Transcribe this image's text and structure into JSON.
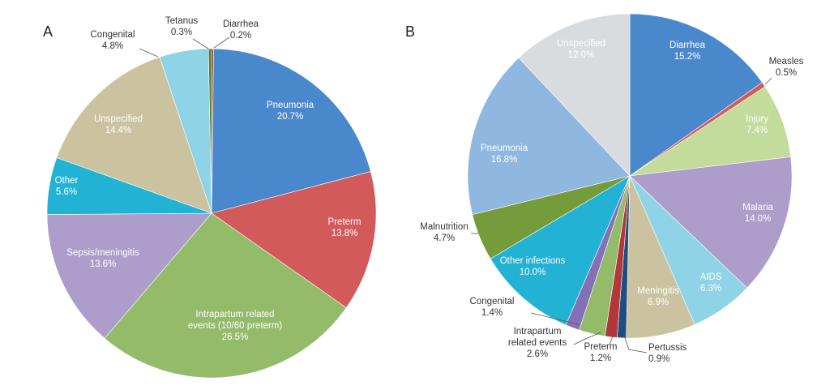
{
  "chart_data": [
    {
      "type": "pie",
      "panel": "A",
      "start": "12 o'clock, clockwise",
      "slices": [
        {
          "label": [
            "Diarrhea"
          ],
          "value": 0.2,
          "color": "#8b4a1f",
          "text": "0.2%"
        },
        {
          "label": [
            "Pneumonia"
          ],
          "value": 20.7,
          "color": "#4a88cc",
          "text": "20.7%"
        },
        {
          "label": [
            "Preterm"
          ],
          "value": 13.8,
          "color": "#d35a5a",
          "text": "13.8%"
        },
        {
          "label": [
            "Intrapartum related",
            "events (10/60 preterm)"
          ],
          "value": 26.5,
          "color": "#94bb6a",
          "text": "26.5%"
        },
        {
          "label": [
            "Sepsis/meningitis"
          ],
          "value": 13.6,
          "color": "#ac9dcb",
          "text": "13.6%"
        },
        {
          "label": [
            "Other"
          ],
          "value": 5.6,
          "color": "#22b2d4",
          "text": "5.6%"
        },
        {
          "label": [
            "Unspecified"
          ],
          "value": 14.4,
          "color": "#cbc39f",
          "text": "14.4%"
        },
        {
          "label": [
            "Congenital"
          ],
          "value": 4.8,
          "color": "#8fd3e6",
          "text": "4.8%"
        },
        {
          "label": [
            "Tetanus"
          ],
          "value": 0.3,
          "color": "#5a7e34",
          "text": "0.3%"
        }
      ]
    },
    {
      "type": "pie",
      "panel": "B",
      "start": "12 o'clock, clockwise",
      "slices": [
        {
          "label": [
            "Diarrhea"
          ],
          "value": 15.2,
          "color": "#4a88cc",
          "text": "15.2%"
        },
        {
          "label": [
            "Measles"
          ],
          "value": 0.5,
          "color": "#d35a5a",
          "text": "0.5%"
        },
        {
          "label": [
            "Injury"
          ],
          "value": 7.4,
          "color": "#c3dc9c",
          "text": "7.4%"
        },
        {
          "label": [
            "Malaria"
          ],
          "value": 14.0,
          "color": "#ac9dcb",
          "text": "14.0%"
        },
        {
          "label": [
            "AIDS"
          ],
          "value": 6.3,
          "color": "#8fd3e6",
          "text": "6.3%"
        },
        {
          "label": [
            "Meningitis"
          ],
          "value": 6.9,
          "color": "#cbc39f",
          "text": "6.9%"
        },
        {
          "label": [
            "Pertussis"
          ],
          "value": 0.9,
          "color": "#1f4d80",
          "text": "0.9%"
        },
        {
          "label": [
            "Preterm"
          ],
          "value": 1.2,
          "color": "#b2373a",
          "text": "1.2%"
        },
        {
          "label": [
            "Intrapartum",
            "related events"
          ],
          "value": 2.6,
          "color": "#94bb6a",
          "text": "2.6%"
        },
        {
          "label": [
            "Congenital"
          ],
          "value": 1.4,
          "color": "#8470b6",
          "text": "1.4%"
        },
        {
          "label": [
            "Other infections"
          ],
          "value": 10.0,
          "color": "#22b2d4",
          "text": "10.0%"
        },
        {
          "label": [
            "Malnutrition"
          ],
          "value": 4.7,
          "color": "#759c3b",
          "text": "4.7%"
        },
        {
          "label": [
            "Pneumonia"
          ],
          "value": 16.8,
          "color": "#8fb7e0",
          "text": "16.8%"
        },
        {
          "label": [
            "Unspecified"
          ],
          "value": 12.0,
          "color": "#d8dcdf",
          "text": "12.0%"
        }
      ]
    }
  ]
}
